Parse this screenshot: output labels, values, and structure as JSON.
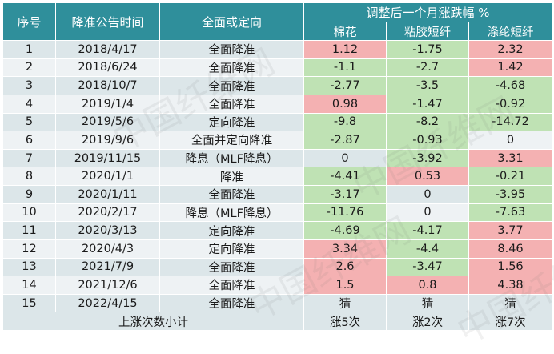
{
  "header": {
    "col_index": "序号",
    "col_date": "降准公告时间",
    "col_type": "全面或定向",
    "group_title": "调整后一个月涨跌幅 %",
    "col_cotton": "棉花",
    "col_viscose": "粘胶短纤",
    "col_polyester": "涤纶短纤"
  },
  "rows": [
    {
      "idx": "1",
      "date": "2018/4/17",
      "type": "全面降准",
      "cotton": "1.12",
      "viscose": "-1.75",
      "polyester": "2.32"
    },
    {
      "idx": "2",
      "date": "2018/6/24",
      "type": "全面降准",
      "cotton": "-1.1",
      "viscose": "-2.7",
      "polyester": "1.42"
    },
    {
      "idx": "3",
      "date": "2018/10/7",
      "type": "全面降准",
      "cotton": "-2.77",
      "viscose": "-3.5",
      "polyester": "-4.68"
    },
    {
      "idx": "4",
      "date": "2019/1/4",
      "type": "全面降准",
      "cotton": "0.98",
      "viscose": "-1.47",
      "polyester": "-0.92"
    },
    {
      "idx": "5",
      "date": "2019/5/6",
      "type": "定向降准",
      "cotton": "-9.8",
      "viscose": "-8.2",
      "polyester": "-14.72"
    },
    {
      "idx": "6",
      "date": "2019/9/6",
      "type": "全面并定向降准",
      "cotton": "-2.87",
      "viscose": "-0.93",
      "polyester": "0"
    },
    {
      "idx": "7",
      "date": "2019/11/15",
      "type": "降息（MLF降息）",
      "cotton": "0",
      "viscose": "-3.92",
      "polyester": "3.31"
    },
    {
      "idx": "8",
      "date": "2020/1/1",
      "type": "降准",
      "cotton": "-4.41",
      "viscose": "0.53",
      "polyester": "-0.21"
    },
    {
      "idx": "9",
      "date": "2020/1/11",
      "type": "全面降准",
      "cotton": "-3.17",
      "viscose": "0",
      "polyester": "-3.95"
    },
    {
      "idx": "10",
      "date": "2020/2/17",
      "type": "降息（MLF降息）",
      "cotton": "-11.76",
      "viscose": "0",
      "polyester": "-7.63"
    },
    {
      "idx": "11",
      "date": "2020/3/13",
      "type": "定向降准",
      "cotton": "-4.69",
      "viscose": "-4.17",
      "polyester": "3.77"
    },
    {
      "idx": "12",
      "date": "2020/4/3",
      "type": "定向降准",
      "cotton": "3.34",
      "viscose": "-4.4",
      "polyester": "8.46"
    },
    {
      "idx": "13",
      "date": "2021/7/9",
      "type": "全面降准",
      "cotton": "2.6",
      "viscose": "-3.47",
      "polyester": "1.56"
    },
    {
      "idx": "14",
      "date": "2021/12/6",
      "type": "全面降准",
      "cotton": "1.5",
      "viscose": "0.8",
      "polyester": "4.38"
    },
    {
      "idx": "15",
      "date": "2022/4/15",
      "type": "全面降准",
      "cotton": "猜",
      "viscose": "猜",
      "polyester": "猜"
    }
  ],
  "summary": {
    "label": "上涨次数小计",
    "cotton": "涨5次",
    "viscose": "涨2次",
    "polyester": "涨7次"
  },
  "watermark": "中国纤维网",
  "colors": {
    "header_bg": "#2f8f9b",
    "positive_bg": "#f4b1b2",
    "negative_bg": "#bfe2b4",
    "row_bg": "#dce6e9"
  }
}
